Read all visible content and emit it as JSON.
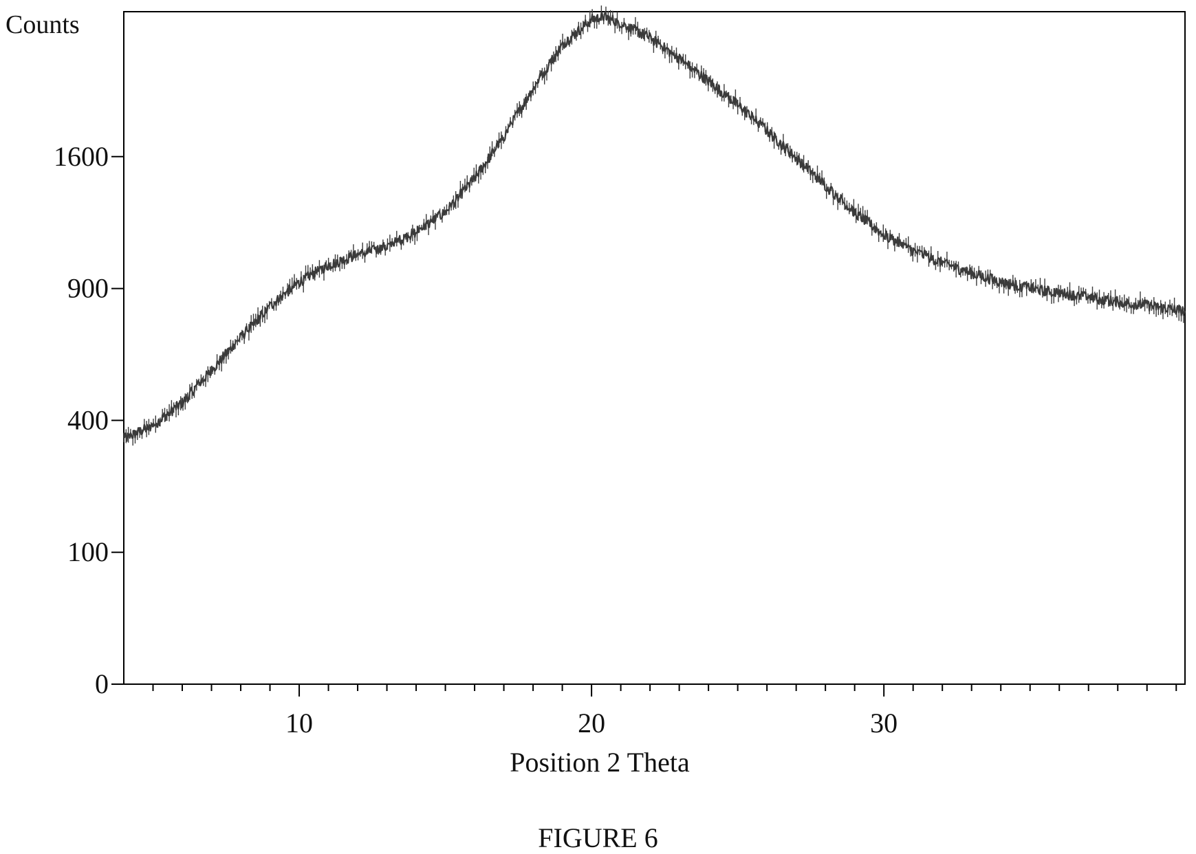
{
  "figure_caption": "FIGURE 6",
  "colors": {
    "trace": "#3a3a3a",
    "axis": "#000000",
    "text": "#111111",
    "background": "#ffffff"
  },
  "chart_data": {
    "type": "line",
    "ylabel": "Counts",
    "xlabel": "Position 2 Theta",
    "x_scale": "linear",
    "y_scale": "sqrt",
    "xlim": [
      4,
      40.3
    ],
    "ylim": [
      0,
      2600
    ],
    "x_ticks": [
      10,
      20,
      30
    ],
    "y_ticks": [
      0,
      100,
      400,
      900,
      1600
    ],
    "grid": false,
    "series": [
      {
        "name": "",
        "x": [
          4,
          5,
          6,
          7,
          8,
          9,
          10,
          11,
          12,
          13,
          14,
          15,
          16,
          17,
          18,
          19,
          20,
          20.5,
          21,
          22,
          23,
          24,
          25,
          26,
          27,
          28,
          29,
          30,
          31,
          32,
          33,
          34,
          35,
          36,
          37,
          38,
          39,
          40.3
        ],
        "y": [
          345,
          385,
          455,
          565,
          690,
          820,
          930,
          1010,
          1060,
          1100,
          1175,
          1280,
          1470,
          1720,
          2040,
          2350,
          2540,
          2560,
          2510,
          2400,
          2250,
          2090,
          1930,
          1760,
          1590,
          1430,
          1280,
          1160,
          1080,
          1020,
          970,
          930,
          900,
          880,
          860,
          840,
          825,
          800
        ]
      }
    ]
  }
}
